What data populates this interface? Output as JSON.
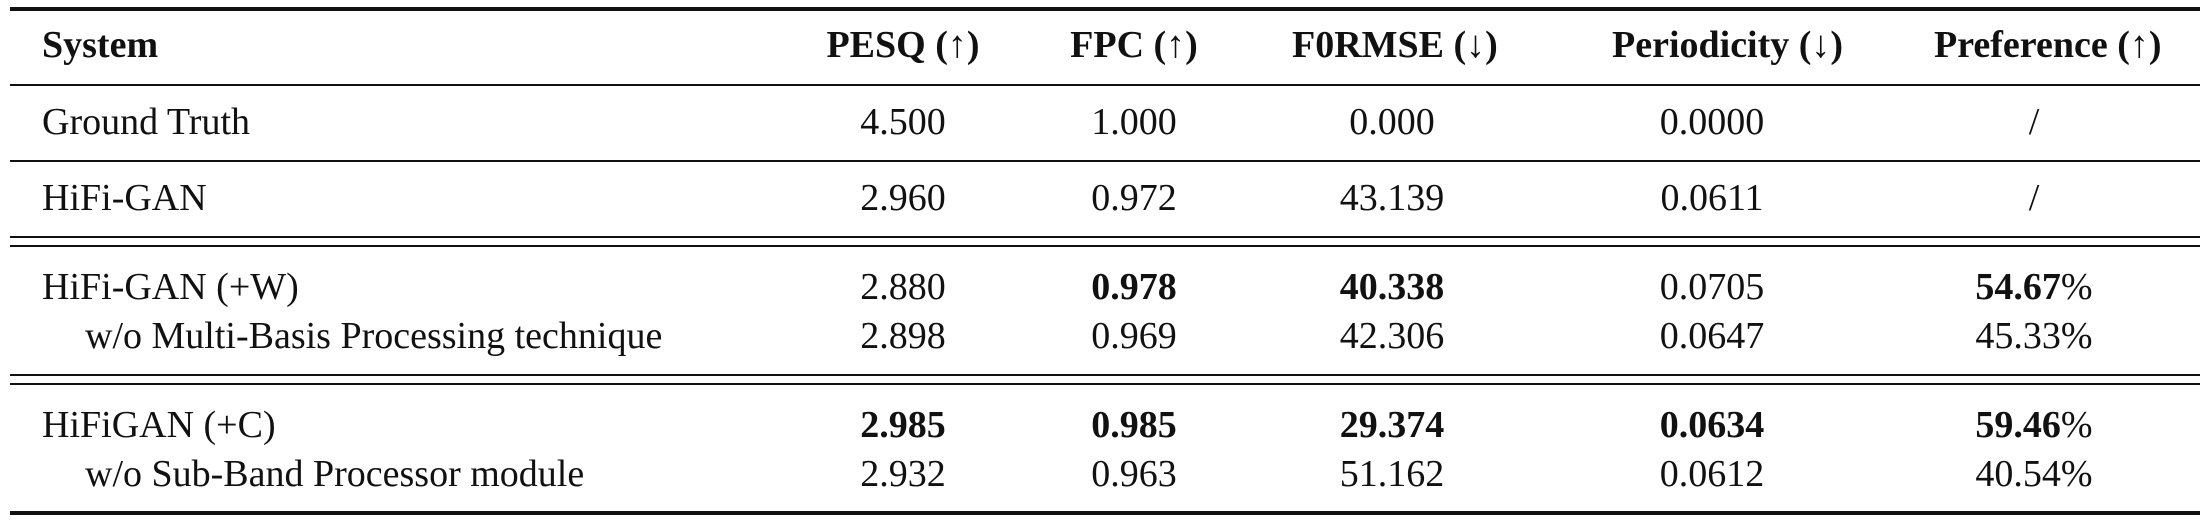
{
  "table": {
    "headers": [
      "System",
      "PESQ (↑)",
      "FPC (↑)",
      "F0RMSE (↓)",
      "Periodicity (↓)",
      "Preference (↑)"
    ],
    "rows": [
      {
        "system": "Ground Truth",
        "pesq": "4.500",
        "fpc": "1.000",
        "f0rmse": "0.000",
        "periodicity": "0.0000",
        "preference": "/"
      },
      {
        "system": "HiFi-GAN",
        "pesq": "2.960",
        "fpc": "0.972",
        "f0rmse": "43.139",
        "periodicity": "0.0611",
        "preference": "/"
      },
      {
        "system": "HiFi-GAN (+W)",
        "pesq": "2.880",
        "fpc": "0.978",
        "f0rmse": "40.338",
        "periodicity": "0.0705",
        "preference_num": "54.67",
        "preference_pct": "%"
      },
      {
        "system": "w/o Multi-Basis Processing technique",
        "pesq": "2.898",
        "fpc": "0.969",
        "f0rmse": "42.306",
        "periodicity": "0.0647",
        "preference": "45.33%"
      },
      {
        "system": "HiFiGAN (+C)",
        "pesq": "2.985",
        "fpc": "0.985",
        "f0rmse": "29.374",
        "periodicity": "0.0634",
        "preference_num": "59.46",
        "preference_pct": "%"
      },
      {
        "system": "w/o Sub-Band Processor module",
        "pesq": "2.932",
        "fpc": "0.963",
        "f0rmse": "51.162",
        "periodicity": "0.0612",
        "preference": "40.54%"
      }
    ]
  }
}
